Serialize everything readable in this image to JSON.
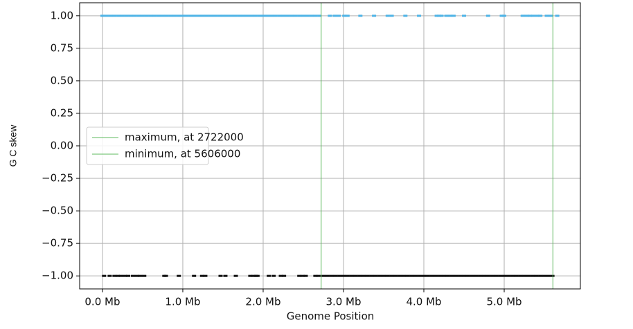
{
  "chart_data": {
    "type": "scatter",
    "xlabel": "Genome Position",
    "ylabel": "G C skew",
    "xlim": [
      -284000,
      5948000
    ],
    "ylim": [
      -1.1,
      1.1
    ],
    "grid": true,
    "legend_loc": "center left",
    "xticks": [
      {
        "value": 0,
        "label": "0.0 Mb"
      },
      {
        "value": 1000000,
        "label": "1.0 Mb"
      },
      {
        "value": 2000000,
        "label": "2.0 Mb"
      },
      {
        "value": 3000000,
        "label": "3.0 Mb"
      },
      {
        "value": 4000000,
        "label": "4.0 Mb"
      },
      {
        "value": 5000000,
        "label": "5.0 Mb"
      }
    ],
    "yticks": [
      {
        "value": 1,
        "label": "1.00"
      },
      {
        "value": 0.75,
        "label": "0.75"
      },
      {
        "value": 0.5,
        "label": "0.50"
      },
      {
        "value": 0.25,
        "label": "0.25"
      },
      {
        "value": 0,
        "label": "0.00"
      },
      {
        "value": -0.25,
        "label": "−0.25"
      },
      {
        "value": -0.5,
        "label": "−0.50"
      },
      {
        "value": -0.75,
        "label": "−0.75"
      },
      {
        "value": -1,
        "label": "−1.00"
      }
    ],
    "vlines": [
      {
        "name": "maximum, at 2722000",
        "x": 2722000,
        "color": "#5cb85c"
      },
      {
        "name": "minimum, at 5606000",
        "x": 5606000,
        "color": "#5cb85c"
      }
    ],
    "series": [
      {
        "color": "#4db3e6",
        "x": [
          0,
          50000,
          100000,
          150000,
          200000,
          250000,
          300000,
          350000,
          400000,
          450000,
          500000,
          550000,
          600000,
          650000,
          700000,
          750000,
          800000,
          850000,
          900000,
          950000,
          1000000,
          1050000,
          1100000,
          1150000,
          1200000,
          1250000,
          1300000,
          1350000,
          1400000,
          1450000,
          1500000,
          1550000,
          1600000,
          1650000,
          1700000,
          1750000,
          1800000,
          1850000,
          1900000,
          1950000,
          2000000,
          2050000,
          2100000,
          2150000,
          2200000,
          2250000,
          2300000,
          2350000,
          2400000,
          2450000,
          2500000,
          2550000,
          2600000,
          2650000,
          2700000,
          2830000,
          2890000,
          2940000,
          3010000,
          3050000,
          3210000,
          3380000,
          3550000,
          3600000,
          3770000,
          3940000,
          4160000,
          4190000,
          4220000,
          4280000,
          4330000,
          4370000,
          4500000,
          4800000,
          4970000,
          5000000,
          5230000,
          5280000,
          5320000,
          5360000,
          5410000,
          5450000,
          5530000,
          5580000,
          5660000
        ],
        "values": [
          1,
          1,
          1,
          1,
          1,
          1,
          1,
          1,
          1,
          1,
          1,
          1,
          1,
          1,
          1,
          1,
          1,
          1,
          1,
          1,
          1,
          1,
          1,
          1,
          1,
          1,
          1,
          1,
          1,
          1,
          1,
          1,
          1,
          1,
          1,
          1,
          1,
          1,
          1,
          1,
          1,
          1,
          1,
          1,
          1,
          1,
          1,
          1,
          1,
          1,
          1,
          1,
          1,
          1,
          1,
          1,
          1,
          1,
          1,
          1,
          1,
          1,
          1,
          1,
          1,
          1,
          1,
          1,
          1,
          1,
          1,
          1,
          1,
          1,
          1,
          1,
          1,
          1,
          1,
          1,
          1,
          1,
          1,
          1,
          1
        ]
      },
      {
        "color": "#111111",
        "x": [
          20000,
          90000,
          150000,
          190000,
          230000,
          280000,
          320000,
          380000,
          430000,
          470000,
          520000,
          770000,
          790000,
          950000,
          1140000,
          1240000,
          1280000,
          1470000,
          1530000,
          1660000,
          1840000,
          1880000,
          1910000,
          1930000,
          2070000,
          2130000,
          2220000,
          2260000,
          2450000,
          2490000,
          2530000,
          2650000,
          2690000,
          2750000,
          2800000,
          2850000,
          2900000,
          2950000,
          3000000,
          3050000,
          3100000,
          3150000,
          3200000,
          3250000,
          3300000,
          3350000,
          3400000,
          3450000,
          3500000,
          3550000,
          3600000,
          3650000,
          3700000,
          3750000,
          3800000,
          3850000,
          3900000,
          3950000,
          4000000,
          4050000,
          4100000,
          4150000,
          4200000,
          4250000,
          4300000,
          4350000,
          4400000,
          4450000,
          4500000,
          4550000,
          4600000,
          4650000,
          4700000,
          4750000,
          4800000,
          4850000,
          4900000,
          4950000,
          5000000,
          5050000,
          5100000,
          5150000,
          5200000,
          5250000,
          5300000,
          5350000,
          5400000,
          5450000,
          5500000,
          5550000,
          5600000
        ],
        "values": [
          -1,
          -1,
          -1,
          -1,
          -1,
          -1,
          -1,
          -1,
          -1,
          -1,
          -1,
          -1,
          -1,
          -1,
          -1,
          -1,
          -1,
          -1,
          -1,
          -1,
          -1,
          -1,
          -1,
          -1,
          -1,
          -1,
          -1,
          -1,
          -1,
          -1,
          -1,
          -1,
          -1,
          -1,
          -1,
          -1,
          -1,
          -1,
          -1,
          -1,
          -1,
          -1,
          -1,
          -1,
          -1,
          -1,
          -1,
          -1,
          -1,
          -1,
          -1,
          -1,
          -1,
          -1,
          -1,
          -1,
          -1,
          -1,
          -1,
          -1,
          -1,
          -1,
          -1,
          -1,
          -1,
          -1,
          -1,
          -1,
          -1,
          -1,
          -1,
          -1,
          -1,
          -1,
          -1,
          -1,
          -1,
          -1,
          -1,
          -1,
          -1,
          -1,
          -1,
          -1,
          -1,
          -1,
          -1,
          -1,
          -1,
          -1,
          -1
        ]
      }
    ]
  }
}
